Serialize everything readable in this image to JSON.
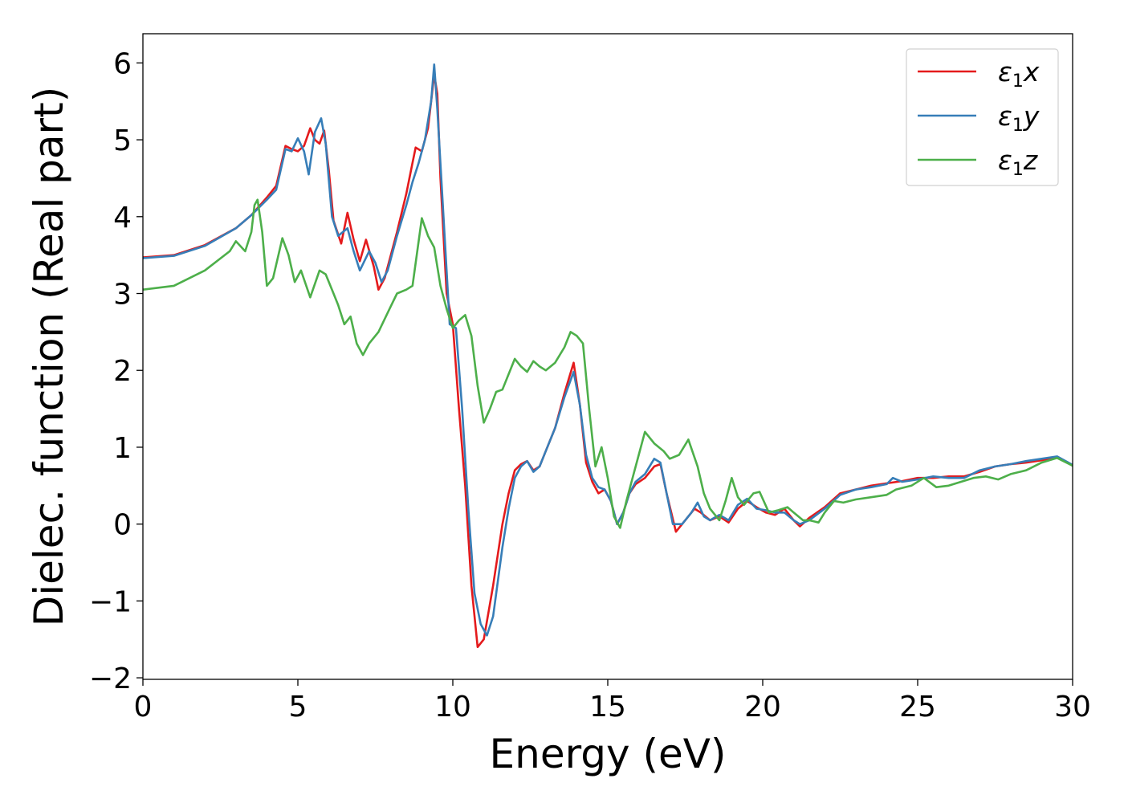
{
  "chart_data": {
    "type": "line",
    "xlabel": "Energy (eV)",
    "ylabel": "Dielec. function (Real part)",
    "xlim": [
      0,
      30
    ],
    "ylim": [
      -2.02,
      6.38
    ],
    "xticks": [
      0,
      5,
      10,
      15,
      20,
      25,
      30
    ],
    "yticks": [
      -2,
      -1,
      0,
      1,
      2,
      3,
      4,
      5,
      6
    ],
    "grid": false,
    "legend_position": "top-right",
    "series": [
      {
        "name_main": "ε",
        "name_sub": "1",
        "name_var": "x",
        "color": "#e41a1c",
        "points": [
          [
            0,
            3.47
          ],
          [
            1,
            3.5
          ],
          [
            2,
            3.63
          ],
          [
            3,
            3.85
          ],
          [
            3.5,
            4.02
          ],
          [
            4,
            4.25
          ],
          [
            4.3,
            4.4
          ],
          [
            4.6,
            4.92
          ],
          [
            4.8,
            4.88
          ],
          [
            5.0,
            4.85
          ],
          [
            5.2,
            4.92
          ],
          [
            5.4,
            5.15
          ],
          [
            5.55,
            5.0
          ],
          [
            5.7,
            4.95
          ],
          [
            5.85,
            5.12
          ],
          [
            6.0,
            4.6
          ],
          [
            6.15,
            3.95
          ],
          [
            6.4,
            3.65
          ],
          [
            6.6,
            4.05
          ],
          [
            6.8,
            3.7
          ],
          [
            7.0,
            3.42
          ],
          [
            7.2,
            3.7
          ],
          [
            7.45,
            3.35
          ],
          [
            7.6,
            3.05
          ],
          [
            7.8,
            3.2
          ],
          [
            8.2,
            3.8
          ],
          [
            8.5,
            4.3
          ],
          [
            8.7,
            4.7
          ],
          [
            8.8,
            4.9
          ],
          [
            9.0,
            4.85
          ],
          [
            9.2,
            5.15
          ],
          [
            9.3,
            5.5
          ],
          [
            9.4,
            5.85
          ],
          [
            9.5,
            5.6
          ],
          [
            9.6,
            4.5
          ],
          [
            9.8,
            3.0
          ],
          [
            10.0,
            2.6
          ],
          [
            10.2,
            1.5
          ],
          [
            10.4,
            0.5
          ],
          [
            10.6,
            -0.8
          ],
          [
            10.8,
            -1.6
          ],
          [
            11.0,
            -1.5
          ],
          [
            11.3,
            -0.8
          ],
          [
            11.6,
            0.0
          ],
          [
            11.8,
            0.4
          ],
          [
            12.0,
            0.7
          ],
          [
            12.2,
            0.78
          ],
          [
            12.4,
            0.82
          ],
          [
            12.6,
            0.7
          ],
          [
            12.8,
            0.75
          ],
          [
            13.0,
            0.95
          ],
          [
            13.3,
            1.25
          ],
          [
            13.6,
            1.7
          ],
          [
            13.9,
            2.1
          ],
          [
            14.1,
            1.55
          ],
          [
            14.3,
            0.8
          ],
          [
            14.5,
            0.55
          ],
          [
            14.7,
            0.4
          ],
          [
            14.9,
            0.45
          ],
          [
            15.1,
            0.3
          ],
          [
            15.3,
            0.0
          ],
          [
            15.5,
            0.15
          ],
          [
            15.7,
            0.4
          ],
          [
            15.9,
            0.52
          ],
          [
            16.2,
            0.6
          ],
          [
            16.5,
            0.75
          ],
          [
            16.7,
            0.78
          ],
          [
            16.9,
            0.4
          ],
          [
            17.2,
            -0.1
          ],
          [
            17.5,
            0.05
          ],
          [
            17.8,
            0.2
          ],
          [
            18.0,
            0.15
          ],
          [
            18.3,
            0.05
          ],
          [
            18.6,
            0.1
          ],
          [
            18.9,
            0.02
          ],
          [
            19.2,
            0.2
          ],
          [
            19.5,
            0.3
          ],
          [
            19.8,
            0.22
          ],
          [
            20.1,
            0.15
          ],
          [
            20.4,
            0.12
          ],
          [
            20.7,
            0.2
          ],
          [
            21.0,
            0.05
          ],
          [
            21.2,
            -0.03
          ],
          [
            21.5,
            0.08
          ],
          [
            22.0,
            0.22
          ],
          [
            22.5,
            0.4
          ],
          [
            23.0,
            0.45
          ],
          [
            23.5,
            0.5
          ],
          [
            24.0,
            0.53
          ],
          [
            24.5,
            0.56
          ],
          [
            25.0,
            0.6
          ],
          [
            25.5,
            0.6
          ],
          [
            26.0,
            0.62
          ],
          [
            26.5,
            0.62
          ],
          [
            27.0,
            0.68
          ],
          [
            27.5,
            0.75
          ],
          [
            28.0,
            0.78
          ],
          [
            28.5,
            0.8
          ],
          [
            29.0,
            0.83
          ],
          [
            29.5,
            0.87
          ],
          [
            30.0,
            0.76
          ]
        ]
      },
      {
        "name_main": "ε",
        "name_sub": "1",
        "name_var": "y",
        "color": "#377eb8",
        "points": [
          [
            0,
            3.46
          ],
          [
            1,
            3.49
          ],
          [
            2,
            3.62
          ],
          [
            3,
            3.85
          ],
          [
            3.5,
            4.02
          ],
          [
            4,
            4.22
          ],
          [
            4.3,
            4.35
          ],
          [
            4.6,
            4.88
          ],
          [
            4.8,
            4.85
          ],
          [
            5.0,
            5.02
          ],
          [
            5.2,
            4.85
          ],
          [
            5.35,
            4.55
          ],
          [
            5.55,
            5.1
          ],
          [
            5.75,
            5.28
          ],
          [
            5.9,
            4.95
          ],
          [
            6.1,
            4.0
          ],
          [
            6.3,
            3.75
          ],
          [
            6.6,
            3.85
          ],
          [
            6.8,
            3.55
          ],
          [
            7.0,
            3.3
          ],
          [
            7.3,
            3.55
          ],
          [
            7.5,
            3.4
          ],
          [
            7.7,
            3.15
          ],
          [
            7.9,
            3.3
          ],
          [
            8.2,
            3.75
          ],
          [
            8.5,
            4.15
          ],
          [
            8.7,
            4.45
          ],
          [
            8.9,
            4.7
          ],
          [
            9.1,
            5.0
          ],
          [
            9.3,
            5.5
          ],
          [
            9.4,
            5.98
          ],
          [
            9.5,
            5.4
          ],
          [
            9.7,
            4.0
          ],
          [
            9.9,
            2.6
          ],
          [
            10.1,
            2.55
          ],
          [
            10.3,
            1.5
          ],
          [
            10.5,
            0.2
          ],
          [
            10.7,
            -0.9
          ],
          [
            10.9,
            -1.3
          ],
          [
            11.1,
            -1.45
          ],
          [
            11.3,
            -1.2
          ],
          [
            11.6,
            -0.3
          ],
          [
            11.8,
            0.2
          ],
          [
            12.0,
            0.6
          ],
          [
            12.2,
            0.75
          ],
          [
            12.4,
            0.82
          ],
          [
            12.6,
            0.68
          ],
          [
            12.8,
            0.75
          ],
          [
            13.0,
            0.95
          ],
          [
            13.3,
            1.25
          ],
          [
            13.6,
            1.65
          ],
          [
            13.9,
            1.98
          ],
          [
            14.1,
            1.55
          ],
          [
            14.3,
            0.9
          ],
          [
            14.5,
            0.6
          ],
          [
            14.7,
            0.48
          ],
          [
            14.9,
            0.45
          ],
          [
            15.1,
            0.3
          ],
          [
            15.3,
            0.0
          ],
          [
            15.5,
            0.15
          ],
          [
            15.7,
            0.4
          ],
          [
            15.9,
            0.55
          ],
          [
            16.2,
            0.65
          ],
          [
            16.5,
            0.85
          ],
          [
            16.7,
            0.8
          ],
          [
            16.9,
            0.4
          ],
          [
            17.1,
            0.0
          ],
          [
            17.4,
            0.0
          ],
          [
            17.7,
            0.15
          ],
          [
            17.9,
            0.28
          ],
          [
            18.1,
            0.1
          ],
          [
            18.3,
            0.05
          ],
          [
            18.6,
            0.12
          ],
          [
            18.9,
            0.05
          ],
          [
            19.2,
            0.25
          ],
          [
            19.5,
            0.33
          ],
          [
            19.8,
            0.2
          ],
          [
            20.1,
            0.18
          ],
          [
            20.4,
            0.15
          ],
          [
            20.7,
            0.15
          ],
          [
            21.0,
            0.05
          ],
          [
            21.2,
            0.0
          ],
          [
            21.5,
            0.05
          ],
          [
            22.0,
            0.2
          ],
          [
            22.5,
            0.38
          ],
          [
            23.0,
            0.45
          ],
          [
            23.5,
            0.48
          ],
          [
            24.0,
            0.52
          ],
          [
            24.2,
            0.6
          ],
          [
            24.5,
            0.55
          ],
          [
            25.0,
            0.58
          ],
          [
            25.5,
            0.62
          ],
          [
            26.0,
            0.6
          ],
          [
            26.5,
            0.6
          ],
          [
            27.0,
            0.7
          ],
          [
            27.5,
            0.75
          ],
          [
            28.0,
            0.78
          ],
          [
            28.5,
            0.82
          ],
          [
            29.0,
            0.85
          ],
          [
            29.5,
            0.88
          ],
          [
            30.0,
            0.77
          ]
        ]
      },
      {
        "name_main": "ε",
        "name_sub": "1",
        "name_var": "z",
        "color": "#4daf4a",
        "points": [
          [
            0,
            3.05
          ],
          [
            1,
            3.1
          ],
          [
            2,
            3.3
          ],
          [
            2.8,
            3.55
          ],
          [
            3.0,
            3.68
          ],
          [
            3.3,
            3.55
          ],
          [
            3.5,
            3.8
          ],
          [
            3.6,
            4.15
          ],
          [
            3.7,
            4.22
          ],
          [
            3.85,
            3.8
          ],
          [
            4.0,
            3.1
          ],
          [
            4.2,
            3.2
          ],
          [
            4.5,
            3.72
          ],
          [
            4.7,
            3.5
          ],
          [
            4.9,
            3.15
          ],
          [
            5.1,
            3.3
          ],
          [
            5.4,
            2.95
          ],
          [
            5.7,
            3.3
          ],
          [
            5.9,
            3.25
          ],
          [
            6.1,
            3.05
          ],
          [
            6.3,
            2.85
          ],
          [
            6.5,
            2.6
          ],
          [
            6.7,
            2.7
          ],
          [
            6.9,
            2.35
          ],
          [
            7.1,
            2.2
          ],
          [
            7.3,
            2.35
          ],
          [
            7.6,
            2.5
          ],
          [
            7.9,
            2.75
          ],
          [
            8.2,
            3.0
          ],
          [
            8.5,
            3.05
          ],
          [
            8.7,
            3.1
          ],
          [
            9.0,
            3.98
          ],
          [
            9.2,
            3.75
          ],
          [
            9.4,
            3.6
          ],
          [
            9.6,
            3.1
          ],
          [
            9.8,
            2.8
          ],
          [
            10.0,
            2.55
          ],
          [
            10.2,
            2.65
          ],
          [
            10.4,
            2.72
          ],
          [
            10.6,
            2.45
          ],
          [
            10.8,
            1.8
          ],
          [
            11.0,
            1.32
          ],
          [
            11.2,
            1.5
          ],
          [
            11.4,
            1.72
          ],
          [
            11.6,
            1.75
          ],
          [
            11.8,
            1.95
          ],
          [
            12.0,
            2.15
          ],
          [
            12.2,
            2.05
          ],
          [
            12.4,
            1.98
          ],
          [
            12.6,
            2.12
          ],
          [
            12.8,
            2.05
          ],
          [
            13.0,
            2.0
          ],
          [
            13.3,
            2.1
          ],
          [
            13.6,
            2.3
          ],
          [
            13.8,
            2.5
          ],
          [
            14.0,
            2.45
          ],
          [
            14.2,
            2.35
          ],
          [
            14.4,
            1.5
          ],
          [
            14.6,
            0.75
          ],
          [
            14.8,
            1.0
          ],
          [
            15.0,
            0.6
          ],
          [
            15.2,
            0.1
          ],
          [
            15.4,
            -0.05
          ],
          [
            15.6,
            0.3
          ],
          [
            15.8,
            0.6
          ],
          [
            16.0,
            0.9
          ],
          [
            16.2,
            1.2
          ],
          [
            16.5,
            1.05
          ],
          [
            16.8,
            0.95
          ],
          [
            17.0,
            0.85
          ],
          [
            17.3,
            0.9
          ],
          [
            17.6,
            1.1
          ],
          [
            17.9,
            0.75
          ],
          [
            18.1,
            0.4
          ],
          [
            18.3,
            0.2
          ],
          [
            18.6,
            0.05
          ],
          [
            18.8,
            0.3
          ],
          [
            19.0,
            0.6
          ],
          [
            19.2,
            0.35
          ],
          [
            19.4,
            0.25
          ],
          [
            19.7,
            0.4
          ],
          [
            19.9,
            0.42
          ],
          [
            20.2,
            0.15
          ],
          [
            20.5,
            0.18
          ],
          [
            20.8,
            0.22
          ],
          [
            21.0,
            0.15
          ],
          [
            21.3,
            0.05
          ],
          [
            21.5,
            0.05
          ],
          [
            21.8,
            0.02
          ],
          [
            22.0,
            0.15
          ],
          [
            22.3,
            0.3
          ],
          [
            22.6,
            0.28
          ],
          [
            23.0,
            0.32
          ],
          [
            23.5,
            0.35
          ],
          [
            24.0,
            0.38
          ],
          [
            24.3,
            0.45
          ],
          [
            24.8,
            0.5
          ],
          [
            25.2,
            0.6
          ],
          [
            25.6,
            0.48
          ],
          [
            26.0,
            0.5
          ],
          [
            26.4,
            0.55
          ],
          [
            26.8,
            0.6
          ],
          [
            27.2,
            0.62
          ],
          [
            27.6,
            0.58
          ],
          [
            28.0,
            0.65
          ],
          [
            28.5,
            0.7
          ],
          [
            29.0,
            0.8
          ],
          [
            29.5,
            0.86
          ],
          [
            30.0,
            0.76
          ]
        ]
      }
    ]
  }
}
